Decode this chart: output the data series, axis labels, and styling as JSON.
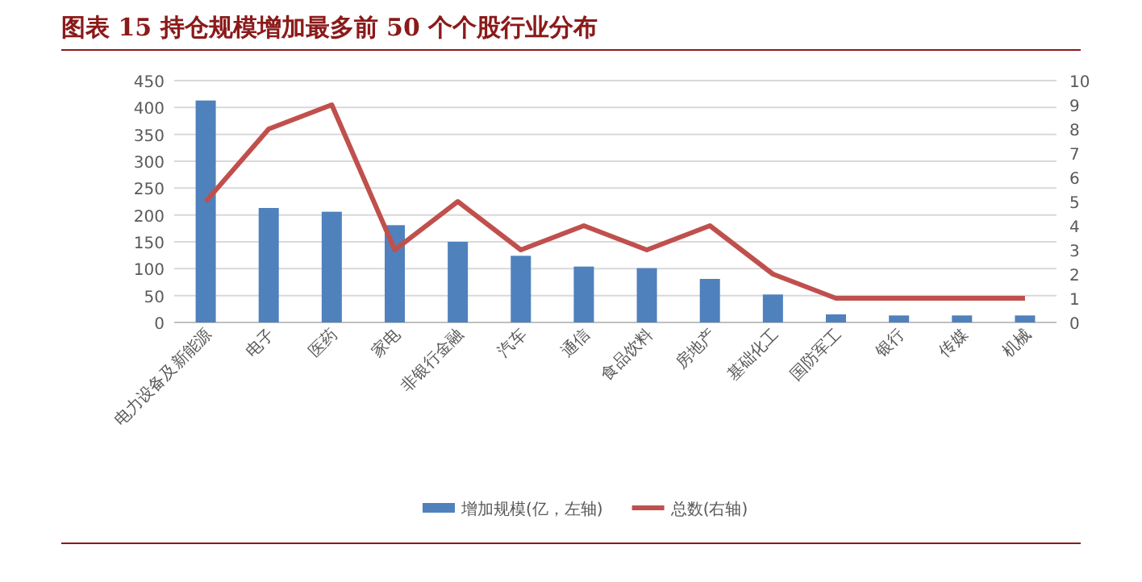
{
  "chart_data": {
    "type": "bar",
    "title": "图表 15  持仓规模增加最多前 50 个个股行业分布",
    "categories": [
      "电力设备及新能源",
      "电子",
      "医药",
      "家电",
      "非银行金融",
      "汽车",
      "通信",
      "食品饮料",
      "房地产",
      "基础化工",
      "国防军工",
      "银行",
      "传媒",
      "机械"
    ],
    "series": [
      {
        "name": "增加规模(亿，左轴)",
        "color": "#4f81bd",
        "values": [
          413,
          213,
          206,
          181,
          150,
          124,
          104,
          101,
          81,
          52,
          15,
          13,
          13,
          13
        ]
      },
      {
        "name": "总数(右轴)",
        "type": "line",
        "axis": "y2",
        "color": "#c0504d",
        "values": [
          5,
          8,
          9,
          3,
          5,
          3,
          4,
          3,
          4,
          2,
          1,
          1,
          1,
          1
        ]
      }
    ],
    "ylim": [
      0,
      450
    ],
    "yticks": [
      0,
      50,
      100,
      150,
      200,
      250,
      300,
      350,
      400,
      450
    ],
    "y2lim": [
      0,
      10
    ],
    "y2ticks": [
      0,
      1,
      2,
      3,
      4,
      5,
      6,
      7,
      8,
      9,
      10
    ],
    "grid": "y",
    "legend": "bottom"
  }
}
